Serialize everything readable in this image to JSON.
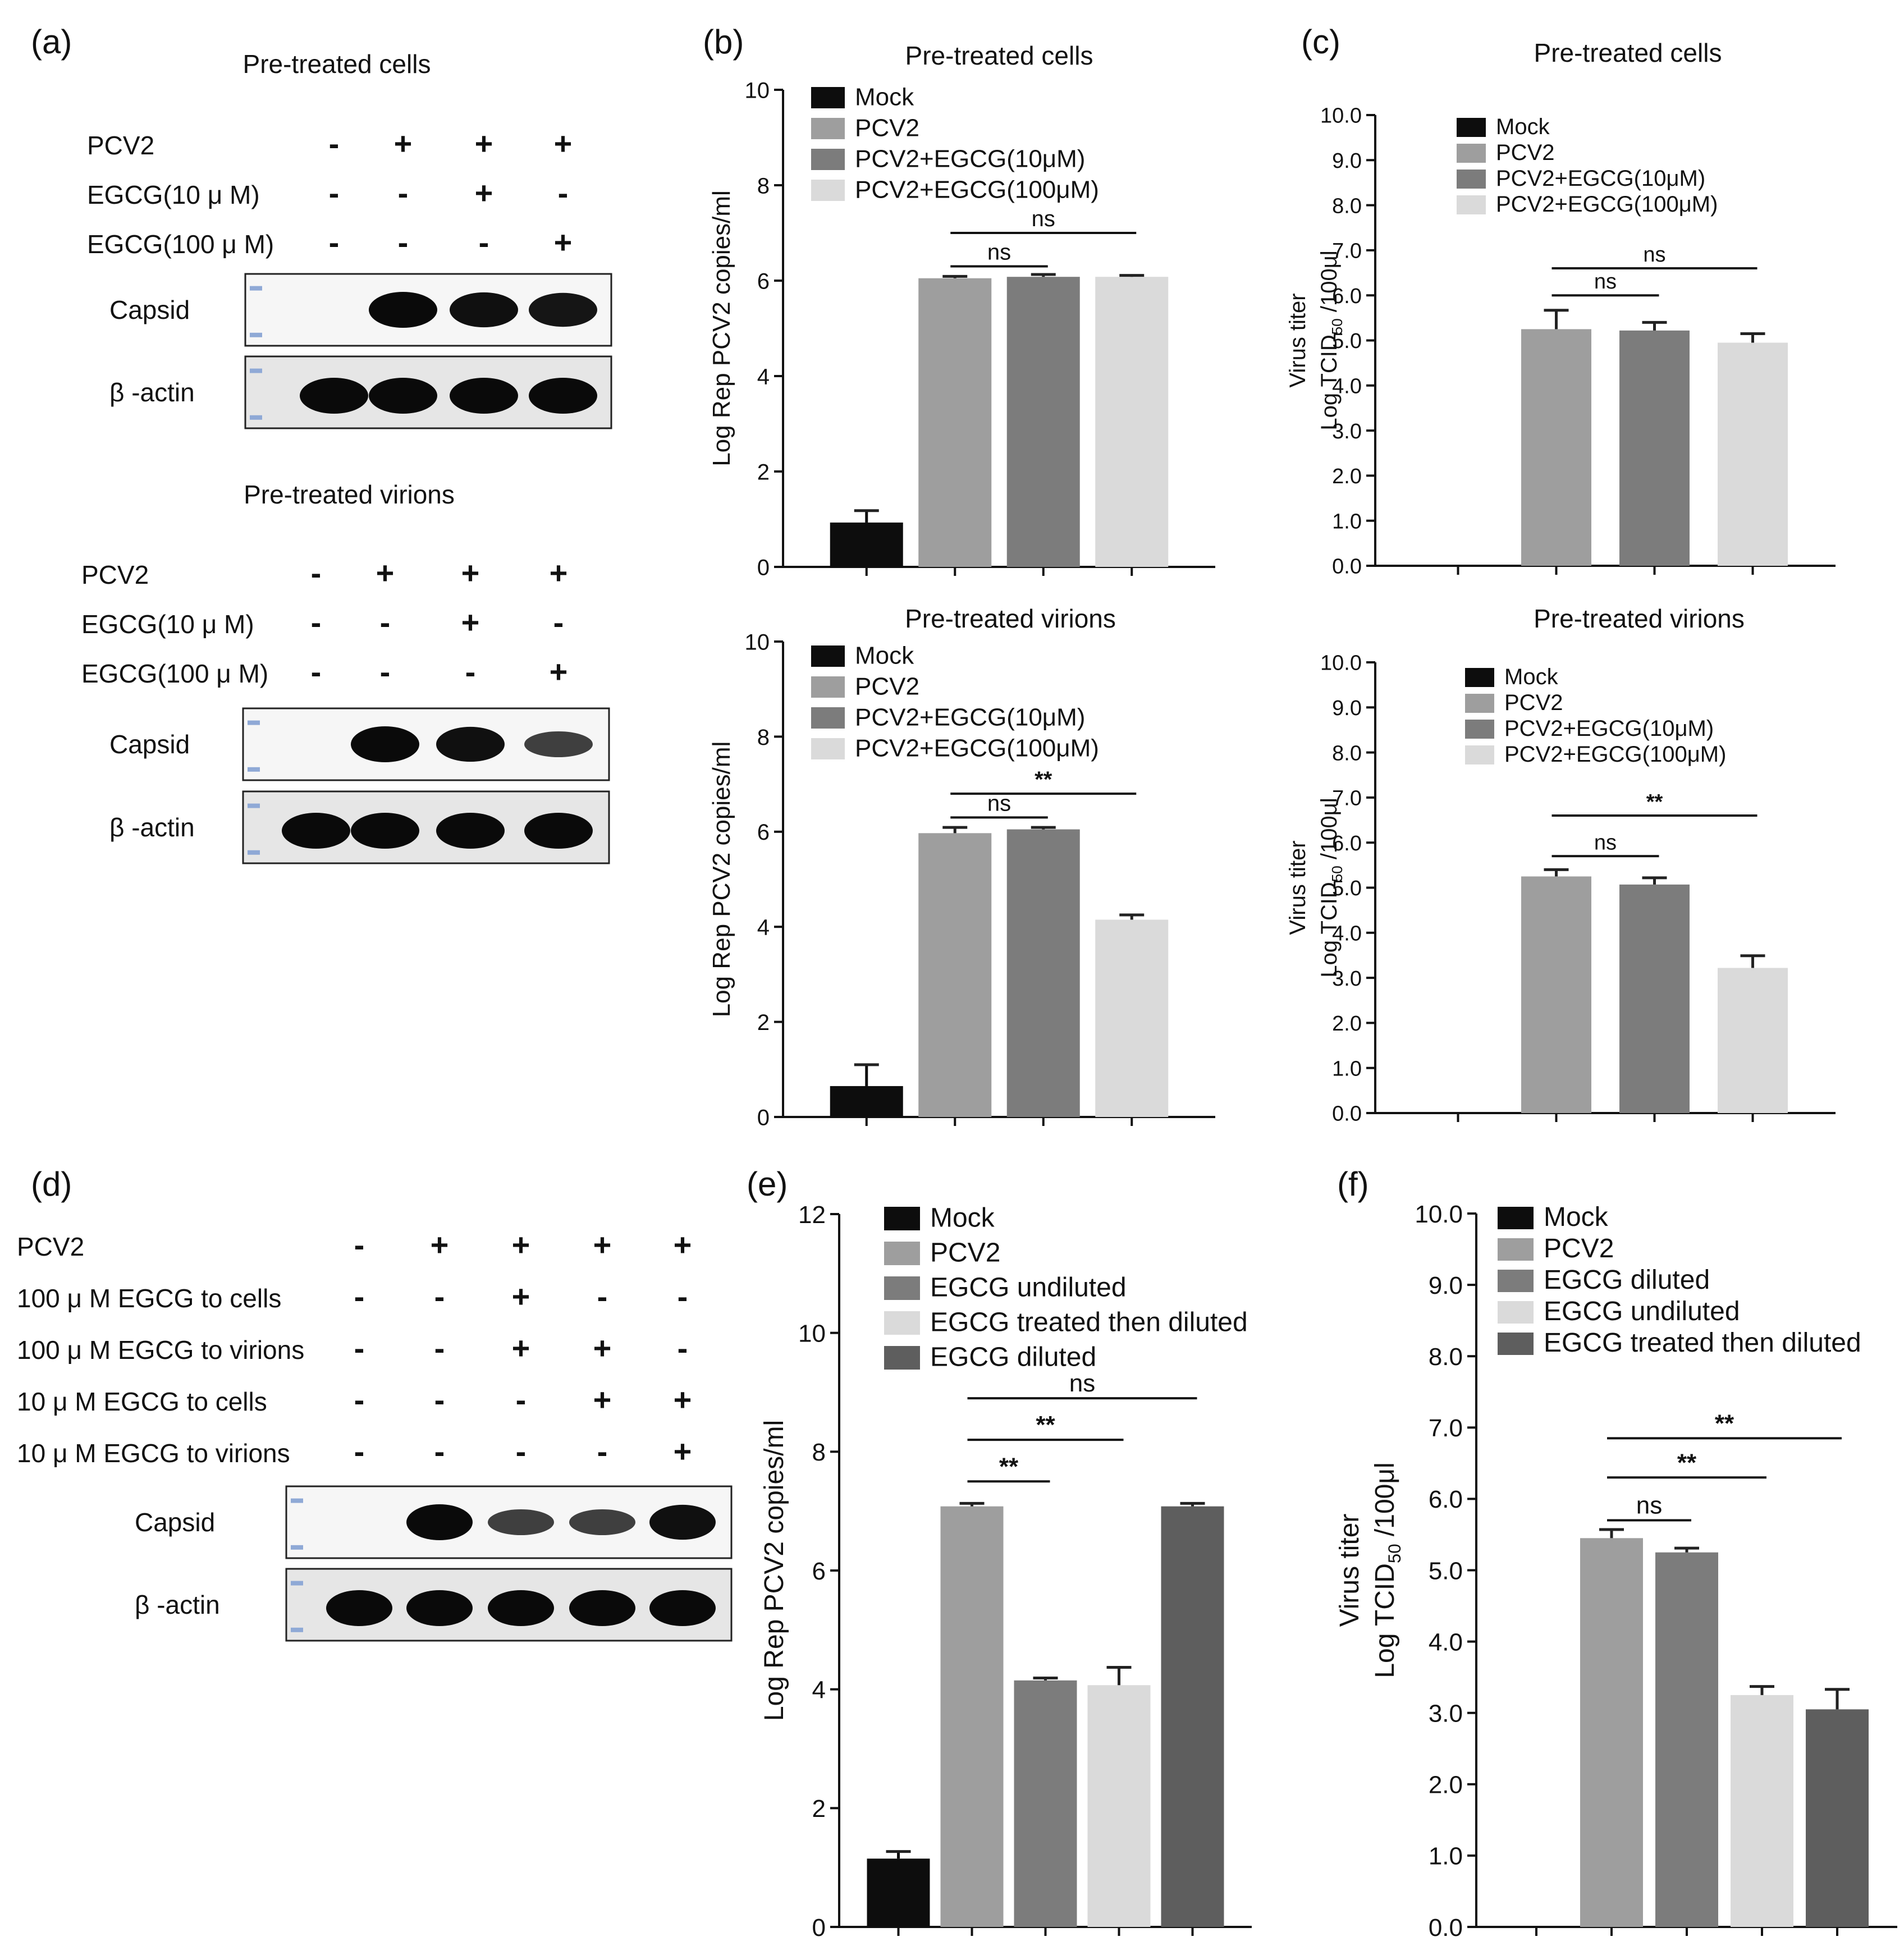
{
  "panel_letters": [
    "(a)",
    "(b)",
    "(c)",
    "(d)",
    "(e)",
    "(f)"
  ],
  "colors": {
    "mock": "#0d0d0d",
    "pcv2": "#9e9e9e",
    "egcg10": "#7c7c7c",
    "egcg100": "#dadada",
    "dark": "#5e5e5e",
    "axis": "#111111"
  },
  "blots": {
    "a_cells": {
      "title": "Pre-treated cells",
      "rows": [
        {
          "label": "PCV2",
          "signs": [
            "-",
            "+",
            "+",
            "+"
          ]
        },
        {
          "label": "EGCG(10 μ M)",
          "signs": [
            "-",
            "-",
            "+",
            "-"
          ]
        },
        {
          "label": "EGCG(100 μ M)",
          "signs": [
            "-",
            "-",
            "-",
            "+"
          ]
        }
      ],
      "bands": [
        {
          "label": "Capsid",
          "intensities": [
            0.0,
            1.0,
            0.95,
            0.9
          ]
        },
        {
          "label": "β -actin",
          "intensities": [
            1.0,
            1.0,
            1.0,
            1.0
          ]
        }
      ]
    },
    "a_virions": {
      "title": "Pre-treated virions",
      "rows": [
        {
          "label": "PCV2",
          "signs": [
            "-",
            "+",
            "+",
            "+"
          ]
        },
        {
          "label": "EGCG(10 μ M)",
          "signs": [
            "-",
            "-",
            "+",
            "-"
          ]
        },
        {
          "label": "EGCG(100 μ M)",
          "signs": [
            "-",
            "-",
            "-",
            "+"
          ]
        }
      ],
      "bands": [
        {
          "label": "Capsid",
          "intensities": [
            0.0,
            1.0,
            0.95,
            0.5
          ]
        },
        {
          "label": "β -actin",
          "intensities": [
            1.0,
            1.0,
            1.0,
            1.0
          ]
        }
      ]
    },
    "d": {
      "title": "",
      "rows": [
        {
          "label": "PCV2",
          "signs": [
            "-",
            "+",
            "+",
            "+",
            "+"
          ]
        },
        {
          "label": "100 μ M EGCG  to cells",
          "signs": [
            "-",
            "-",
            "+",
            "-",
            "-"
          ]
        },
        {
          "label": "100 μ M EGCG to virions",
          "signs": [
            "-",
            "-",
            "+",
            "+",
            "-"
          ]
        },
        {
          "label": "10 μ M EGCG to cells",
          "signs": [
            "-",
            "-",
            "-",
            "+",
            "+"
          ]
        },
        {
          "label": "10 μ M EGCG to virions",
          "signs": [
            "-",
            "-",
            "-",
            "-",
            "+"
          ]
        }
      ],
      "bands": [
        {
          "label": "Capsid",
          "intensities": [
            0.0,
            1.0,
            0.5,
            0.5,
            0.95
          ]
        },
        {
          "label": "β -actin",
          "intensities": [
            1.0,
            1.0,
            1.0,
            1.0,
            1.0
          ]
        }
      ]
    }
  },
  "chart_data": [
    {
      "id": "b_cells",
      "type": "bar",
      "title": "Pre-treated cells",
      "xlabel": "",
      "ylabel": "Log Rep PCV2 copies/ml",
      "ylim": [
        0,
        10
      ],
      "yticks": [
        "0",
        "2",
        "4",
        "6",
        "8",
        "10"
      ],
      "categories": [
        "Mock",
        "PCV2",
        "PCV2+EGCG(10μM)",
        "PCV2+EGCG(100μM)"
      ],
      "values": [
        0.93,
        6.05,
        6.08,
        6.08
      ],
      "errors": [
        0.25,
        0.04,
        0.05,
        0.03
      ],
      "legend": [
        "Mock",
        "PCV2",
        "PCV2+EGCG(10μM)",
        "PCV2+EGCG(100μM)"
      ],
      "significance": [
        {
          "from": 1,
          "to": 2,
          "label": "ns",
          "y": 6.3
        },
        {
          "from": 1,
          "to": 3,
          "label": "ns",
          "y": 7.0
        }
      ]
    },
    {
      "id": "b_virions",
      "type": "bar",
      "title": "Pre-treated virions",
      "xlabel": "",
      "ylabel": "Log Rep PCV2 copies/ml",
      "ylim": [
        0,
        10
      ],
      "yticks": [
        "0",
        "2",
        "4",
        "6",
        "8",
        "10"
      ],
      "categories": [
        "Mock",
        "PCV2",
        "PCV2+EGCG(10μM)",
        "PCV2+EGCG(100μM)"
      ],
      "values": [
        0.65,
        5.97,
        6.05,
        4.15
      ],
      "errors": [
        0.45,
        0.12,
        0.04,
        0.1
      ],
      "legend": [
        "Mock",
        "PCV2",
        "PCV2+EGCG(10μM)",
        "PCV2+EGCG(100μM)"
      ],
      "significance": [
        {
          "from": 1,
          "to": 2,
          "label": "ns",
          "y": 6.3
        },
        {
          "from": 1,
          "to": 3,
          "label": "**",
          "y": 6.8
        }
      ]
    },
    {
      "id": "c_cells",
      "type": "bar",
      "title": "Pre-treated cells",
      "xlabel": "",
      "ylabel": [
        "Virus titer",
        "Log TCID",
        "50",
        " /100μl"
      ],
      "ylim": [
        0,
        10
      ],
      "yticks": [
        "0.0",
        "1.0",
        "2.0",
        "3.0",
        "4.0",
        "5.0",
        "6.0",
        "7.0",
        "8.0",
        "9.0",
        "10.0"
      ],
      "categories": [
        "Mock",
        "PCV2",
        "PCV2+EGCG(10μM)",
        "PCV2+EGCG(100μM)"
      ],
      "values": [
        0,
        5.25,
        5.22,
        4.95
      ],
      "errors": [
        0,
        0.42,
        0.18,
        0.2
      ],
      "legend": [
        "Mock",
        "PCV2",
        "PCV2+EGCG(10μM)",
        "PCV2+EGCG(100μM)"
      ],
      "significance": [
        {
          "from": 1,
          "to": 2,
          "label": "ns",
          "y": 6.0
        },
        {
          "from": 1,
          "to": 3,
          "label": "ns",
          "y": 6.6
        }
      ]
    },
    {
      "id": "c_virions",
      "type": "bar",
      "title": "Pre-treated virions",
      "xlabel": "",
      "ylabel": [
        "Virus titer",
        "Log TCID",
        "50",
        " /100μl"
      ],
      "ylim": [
        0,
        10
      ],
      "yticks": [
        "0.0",
        "1.0",
        "2.0",
        "3.0",
        "4.0",
        "5.0",
        "6.0",
        "7.0",
        "8.0",
        "9.0",
        "10.0"
      ],
      "categories": [
        "Mock",
        "PCV2",
        "PCV2+EGCG(10μM)",
        "PCV2+EGCG(100μM)"
      ],
      "values": [
        0,
        5.25,
        5.07,
        3.22
      ],
      "errors": [
        0,
        0.15,
        0.15,
        0.27
      ],
      "legend": [
        "Mock",
        "PCV2",
        "PCV2+EGCG(10μM)",
        "PCV2+EGCG(100μM)"
      ],
      "significance": [
        {
          "from": 1,
          "to": 2,
          "label": "ns",
          "y": 5.7
        },
        {
          "from": 1,
          "to": 3,
          "label": "**",
          "y": 6.6
        }
      ]
    },
    {
      "id": "e",
      "type": "bar",
      "title": "",
      "xlabel": "",
      "ylabel": "Log Rep PCV2 copies/ml",
      "ylim": [
        0,
        12
      ],
      "yticks": [
        "0",
        "2",
        "4",
        "6",
        "8",
        "10",
        "12"
      ],
      "categories": [
        "Mock",
        "PCV2",
        "EGCG undiluted",
        "EGCG treated then diluted",
        "EGCG diluted"
      ],
      "values": [
        1.15,
        7.08,
        4.15,
        4.07,
        7.08
      ],
      "errors": [
        0.12,
        0.05,
        0.04,
        0.3,
        0.05
      ],
      "legend": [
        "Mock",
        "PCV2",
        "EGCG undiluted",
        "EGCG treated then diluted",
        "EGCG diluted"
      ],
      "significance": [
        {
          "from": 1,
          "to": 2,
          "label": "**",
          "y": 7.5
        },
        {
          "from": 1,
          "to": 3,
          "label": "**",
          "y": 8.2
        },
        {
          "from": 1,
          "to": 4,
          "label": "ns",
          "y": 8.9
        }
      ]
    },
    {
      "id": "f",
      "type": "bar",
      "title": "",
      "xlabel": "",
      "ylabel": [
        "Virus titer",
        "Log TCID",
        "50",
        " /100μl"
      ],
      "ylim": [
        0,
        10
      ],
      "yticks": [
        "0.0",
        "1.0",
        "2.0",
        "3.0",
        "4.0",
        "5.0",
        "6.0",
        "7.0",
        "8.0",
        "9.0",
        "10.0"
      ],
      "categories": [
        "Mock",
        "PCV2",
        "EGCG diluted",
        "EGCG undiluted",
        "EGCG treated then diluted"
      ],
      "values": [
        0,
        5.45,
        5.25,
        3.25,
        3.05
      ],
      "errors": [
        0,
        0.12,
        0.06,
        0.12,
        0.28
      ],
      "legend": [
        "Mock",
        "PCV2",
        "EGCG diluted",
        "EGCG undiluted",
        "EGCG treated then diluted"
      ],
      "significance": [
        {
          "from": 1,
          "to": 2,
          "label": "ns",
          "y": 5.7
        },
        {
          "from": 1,
          "to": 3,
          "label": "**",
          "y": 6.3
        },
        {
          "from": 1,
          "to": 4,
          "label": "**",
          "y": 6.85
        }
      ]
    }
  ]
}
